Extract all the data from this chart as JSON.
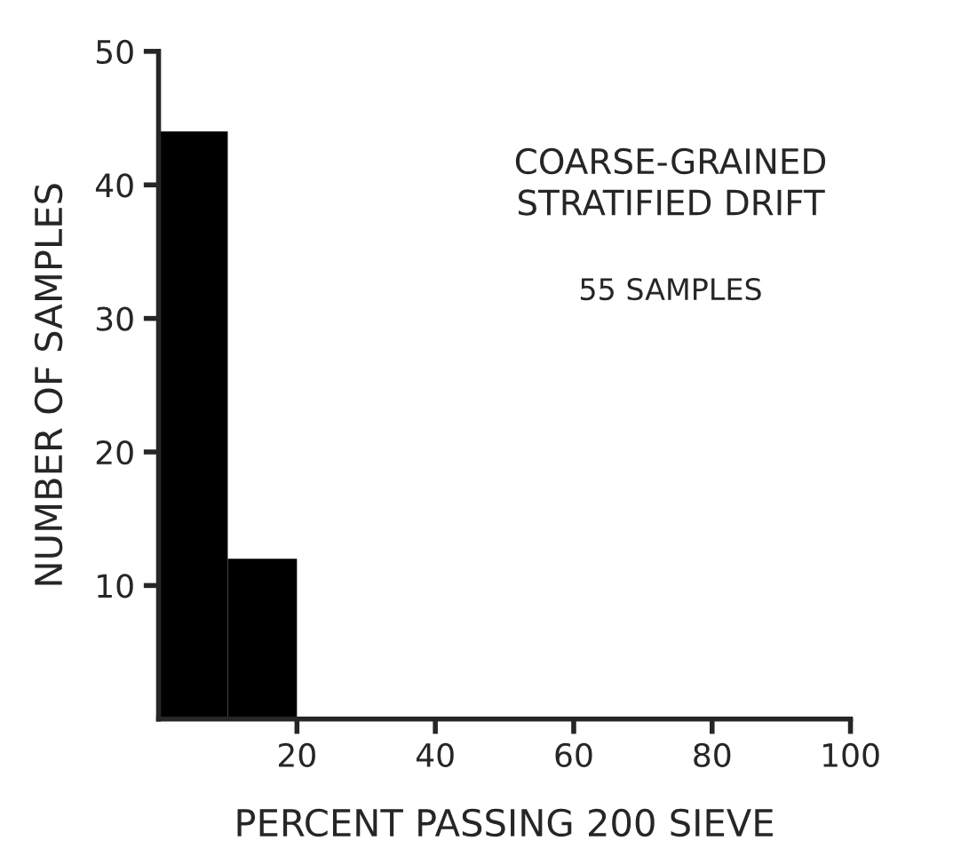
{
  "chart_data": {
    "type": "histogram",
    "xlabel": "PERCENT PASSING 200 SIEVE",
    "ylabel": "NUMBER OF SAMPLES",
    "bins": [
      0,
      10,
      20
    ],
    "values": [
      44,
      12
    ],
    "color": "#000000",
    "xlim": [
      0,
      100
    ],
    "xticks": [
      20,
      40,
      60,
      80,
      100
    ],
    "ylim": [
      0,
      50
    ],
    "yticks": [
      10,
      20,
      30,
      40,
      50
    ],
    "grid": false,
    "annotations": [
      "COARSE-GRAINED\nSTRATIFIED DRIFT",
      "55 SAMPLES"
    ]
  }
}
